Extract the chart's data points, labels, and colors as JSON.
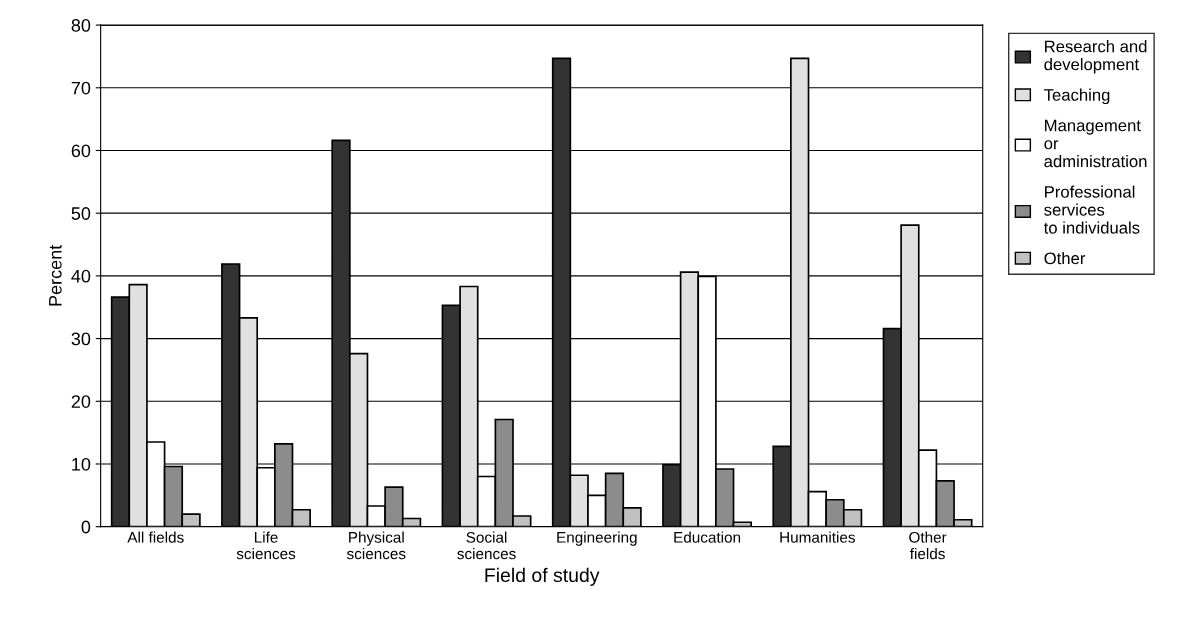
{
  "chart_data": {
    "type": "bar",
    "xlabel": "Field of study",
    "ylabel": "Percent",
    "categories": [
      "All fields",
      "Life\nsciences",
      "Physical\nsciences",
      "Social\nsciences",
      "Engineering",
      "Education",
      "Humanities",
      "Other\nfields"
    ],
    "series": [
      {
        "name": "Research and\ndevelopment",
        "color": "#333333",
        "values": [
          36.6,
          41.9,
          61.6,
          35.3,
          74.7,
          9.9,
          12.8,
          31.6
        ]
      },
      {
        "name": "Teaching",
        "color": "#e0e0e0",
        "values": [
          38.6,
          33.3,
          27.6,
          38.3,
          8.2,
          40.6,
          74.7,
          48.1
        ]
      },
      {
        "name": "Management\nor\nadministration",
        "color": "#ffffff",
        "values": [
          13.5,
          9.4,
          3.3,
          8.0,
          5.0,
          39.9,
          5.6,
          12.2
        ]
      },
      {
        "name": "Professional\nservices\nto individuals",
        "color": "#8c8c8c",
        "values": [
          9.6,
          13.2,
          6.3,
          17.1,
          8.5,
          9.2,
          4.3,
          7.3
        ]
      },
      {
        "name": "Other",
        "color": "#c0c0c0",
        "values": [
          2.0,
          2.7,
          1.3,
          1.7,
          3.0,
          0.7,
          2.7,
          1.1
        ]
      }
    ],
    "ylim": [
      0,
      80
    ],
    "yticks": [
      0,
      10,
      20,
      30,
      40,
      50,
      60,
      70,
      80
    ],
    "grid": "y",
    "legend": "top right"
  }
}
